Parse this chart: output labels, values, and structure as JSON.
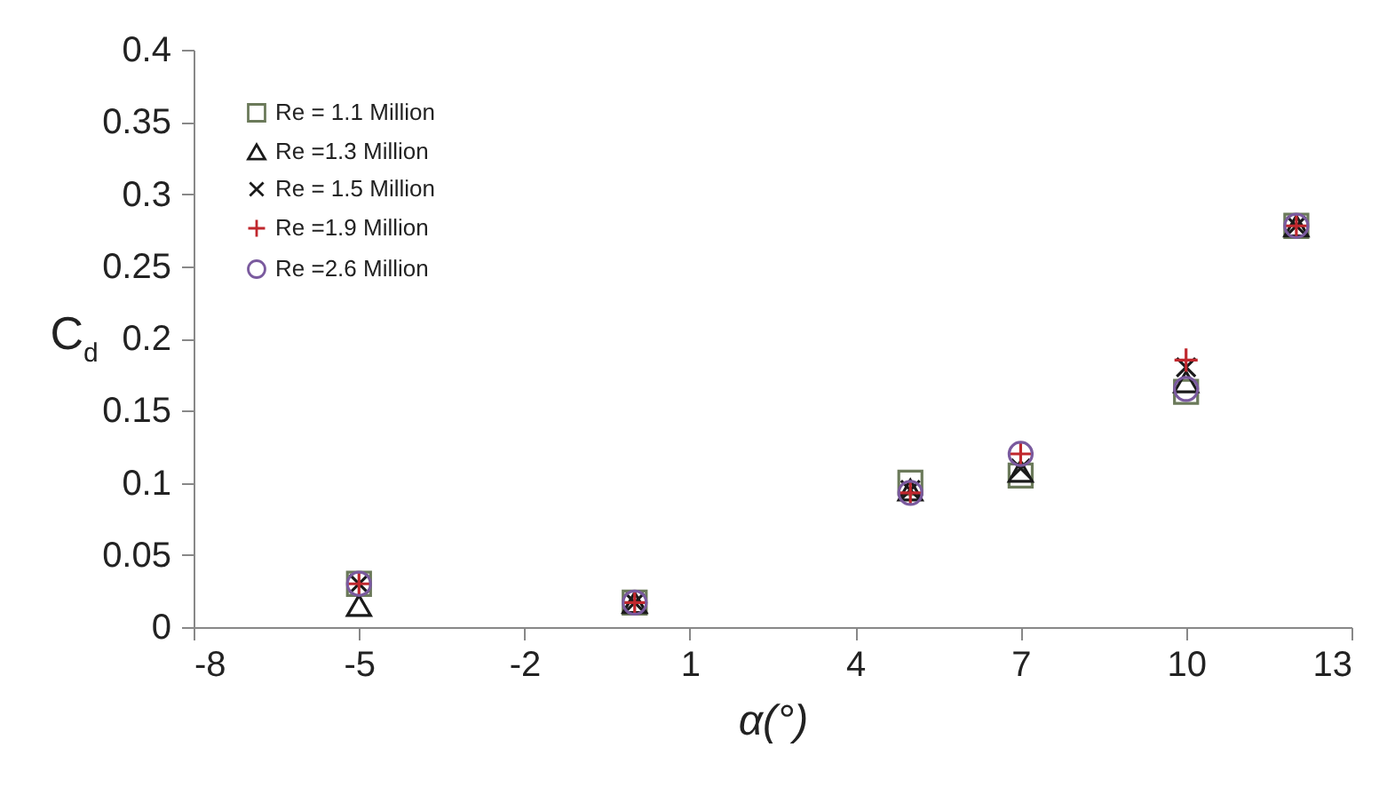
{
  "chart_data": {
    "type": "scatter",
    "xlabel": "α(°)",
    "ylabel": "C$_{d}$",
    "x": [
      -5,
      0,
      5,
      7,
      10,
      12
    ],
    "series": [
      {
        "name": "Re = 1.1 Million",
        "color": "#6b7a5a",
        "marker": "square",
        "values": [
          0.03,
          0.017,
          0.1,
          0.105,
          0.163,
          0.278
        ]
      },
      {
        "name": "Re =1.3 Million",
        "color": "#1a1a1a",
        "marker": "triangle",
        "values": [
          0.015,
          0.017,
          0.095,
          0.108,
          0.17,
          0.278
        ]
      },
      {
        "name": "Re = 1.5 Million",
        "color": "#1a1a1a",
        "marker": "cross",
        "values": [
          0.03,
          0.017,
          0.095,
          0.11,
          0.18,
          0.278
        ]
      },
      {
        "name": "Re =1.9 Million",
        "color": "#c0272d",
        "marker": "plus",
        "values": [
          0.03,
          0.017,
          0.093,
          0.12,
          0.185,
          0.278
        ]
      },
      {
        "name": "Re =2.6 Million",
        "color": "#7a5a9e",
        "marker": "circle",
        "values": [
          0.03,
          0.017,
          0.093,
          0.12,
          0.165,
          0.278
        ]
      }
    ],
    "xlim": [
      -8,
      13
    ],
    "xticks": [
      -8,
      -5,
      -2,
      1,
      4,
      7,
      10,
      13
    ],
    "ylim": [
      0,
      0.4
    ],
    "yticks": [
      0,
      0.05,
      0.1,
      0.15,
      0.2,
      0.25,
      0.3,
      0.35,
      0.4
    ],
    "grid": false,
    "legend": "top left"
  }
}
